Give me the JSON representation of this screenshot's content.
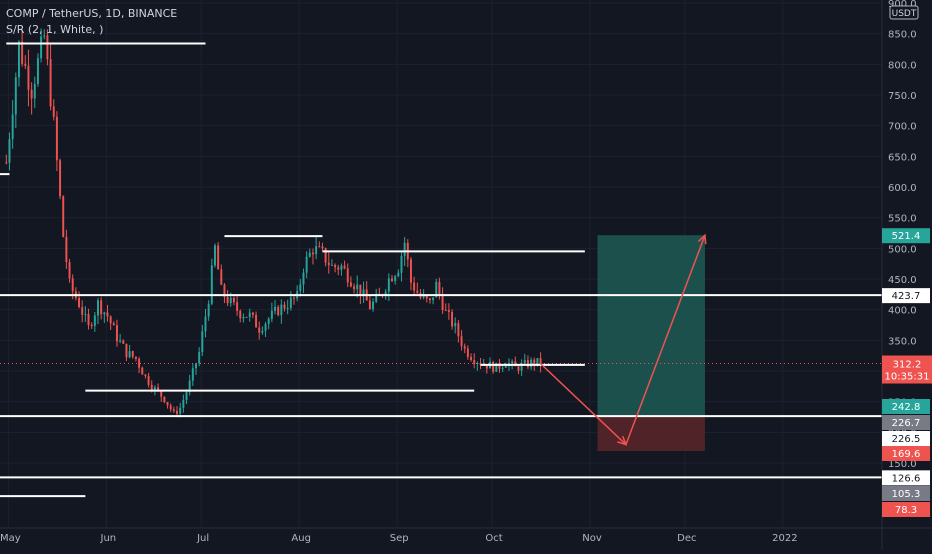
{
  "legend": {
    "line1": "COMP / TetherUS, 1D, BINANCE",
    "line2": "S/R (2, 1, White, )"
  },
  "currency": "USDT",
  "colors": {
    "background": "#131722",
    "grid": "#1e2230",
    "up": "#26a69a",
    "down": "#ef5350",
    "sr_line": "#ffffff",
    "target_zone": "#1d5a55",
    "stop_zone": "#5a2629",
    "projection": "#ef5350"
  },
  "chart_data": {
    "type": "candlestick",
    "symbol": "COMP / TetherUS",
    "interval": "1D",
    "exchange": "BINANCE",
    "y_axis": {
      "range": [
        60,
        910
      ],
      "tick_labels": [
        "900.0",
        "850.0",
        "800.0",
        "750.0",
        "700.0",
        "650.0",
        "600.0",
        "550.0",
        "500.0",
        "450.0",
        "400.0",
        "350.0",
        "300.0",
        "250.0",
        "200.0",
        "150.0"
      ],
      "tick_values": [
        900,
        850,
        800,
        750,
        700,
        650,
        600,
        550,
        500,
        450,
        400,
        350,
        300,
        250,
        200,
        150
      ]
    },
    "x_axis": {
      "labels": [
        "May",
        "Jun",
        "Jul",
        "Aug",
        "Sep",
        "Oct",
        "Nov",
        "Dec",
        "2022"
      ],
      "label_days": [
        0,
        31,
        61,
        92,
        123,
        153,
        184,
        214,
        245
      ],
      "range_days": [
        -2,
        277
      ]
    },
    "close_path": [
      [
        0,
        640
      ],
      [
        4,
        830
      ],
      [
        8,
        760
      ],
      [
        12,
        845
      ],
      [
        15,
        700
      ],
      [
        18,
        520
      ],
      [
        20,
        440
      ],
      [
        23,
        410
      ],
      [
        26,
        370
      ],
      [
        29,
        410
      ],
      [
        32,
        390
      ],
      [
        35,
        355
      ],
      [
        38,
        330
      ],
      [
        41,
        320
      ],
      [
        44,
        290
      ],
      [
        47,
        270
      ],
      [
        50,
        255
      ],
      [
        53,
        230
      ],
      [
        55,
        240
      ],
      [
        58,
        280
      ],
      [
        61,
        330
      ],
      [
        64,
        420
      ],
      [
        66,
        500
      ],
      [
        68,
        430
      ],
      [
        71,
        410
      ],
      [
        74,
        395
      ],
      [
        77,
        390
      ],
      [
        80,
        370
      ],
      [
        83,
        385
      ],
      [
        86,
        400
      ],
      [
        89,
        410
      ],
      [
        92,
        420
      ],
      [
        94,
        470
      ],
      [
        97,
        500
      ],
      [
        100,
        490
      ],
      [
        103,
        470
      ],
      [
        106,
        470
      ],
      [
        109,
        450
      ],
      [
        112,
        430
      ],
      [
        115,
        405
      ],
      [
        118,
        420
      ],
      [
        121,
        450
      ],
      [
        124,
        470
      ],
      [
        126,
        510
      ],
      [
        128,
        445
      ],
      [
        131,
        420
      ],
      [
        134,
        410
      ],
      [
        136,
        440
      ],
      [
        139,
        395
      ],
      [
        142,
        370
      ],
      [
        145,
        335
      ],
      [
        148,
        320
      ],
      [
        151,
        312
      ],
      [
        155,
        305
      ],
      [
        158,
        315
      ],
      [
        161,
        305
      ],
      [
        164,
        310
      ],
      [
        167,
        315
      ],
      [
        169,
        312
      ]
    ],
    "sr_levels": [
      {
        "value": 834,
        "day_start": 0,
        "day_end": 63
      },
      {
        "value": 621,
        "day_start": -2,
        "day_end": 1
      },
      {
        "value": 520,
        "day_start": 69,
        "day_end": 100
      },
      {
        "value": 495,
        "day_start": 100,
        "day_end": 183
      },
      {
        "value": 423.7,
        "day_start": -2,
        "day_end": 277,
        "label": "423.7"
      },
      {
        "value": 310,
        "day_start": 150,
        "day_end": 183
      },
      {
        "value": 268,
        "day_start": 25,
        "day_end": 148
      },
      {
        "value": 226.5,
        "day_start": -2,
        "day_end": 277,
        "label": "226.5"
      },
      {
        "value": 126.6,
        "day_start": -2,
        "day_end": 277,
        "label": "126.6"
      },
      {
        "value": 96,
        "day_start": -2,
        "day_end": 25
      }
    ],
    "position": {
      "day_start": 187,
      "day_end": 221,
      "target": 521.4,
      "entry": 226.7,
      "stop": 169.6
    },
    "projection": [
      [
        169,
        312
      ],
      [
        196,
        180
      ],
      [
        221,
        521.4
      ]
    ],
    "last_price": 312.2,
    "countdown": "10:35:31",
    "price_labels": [
      {
        "value": 521.4,
        "text": "521.4",
        "kind": "target"
      },
      {
        "value": 423.7,
        "text": "423.7",
        "kind": "level"
      },
      {
        "value": 312.2,
        "text": "312.2",
        "kind": "last"
      },
      {
        "value": 242.8,
        "text": "242.8",
        "kind": "target"
      },
      {
        "value": 226.7,
        "text": "226.7",
        "kind": "entry"
      },
      {
        "value": 226.5,
        "text": "226.5",
        "kind": "level"
      },
      {
        "value": 169.6,
        "text": "169.6",
        "kind": "stop"
      },
      {
        "value": 126.6,
        "text": "126.6",
        "kind": "level"
      },
      {
        "value": 105.3,
        "text": "105.3",
        "kind": "entry"
      },
      {
        "value": 78.3,
        "text": "78.3",
        "kind": "stop"
      }
    ]
  }
}
